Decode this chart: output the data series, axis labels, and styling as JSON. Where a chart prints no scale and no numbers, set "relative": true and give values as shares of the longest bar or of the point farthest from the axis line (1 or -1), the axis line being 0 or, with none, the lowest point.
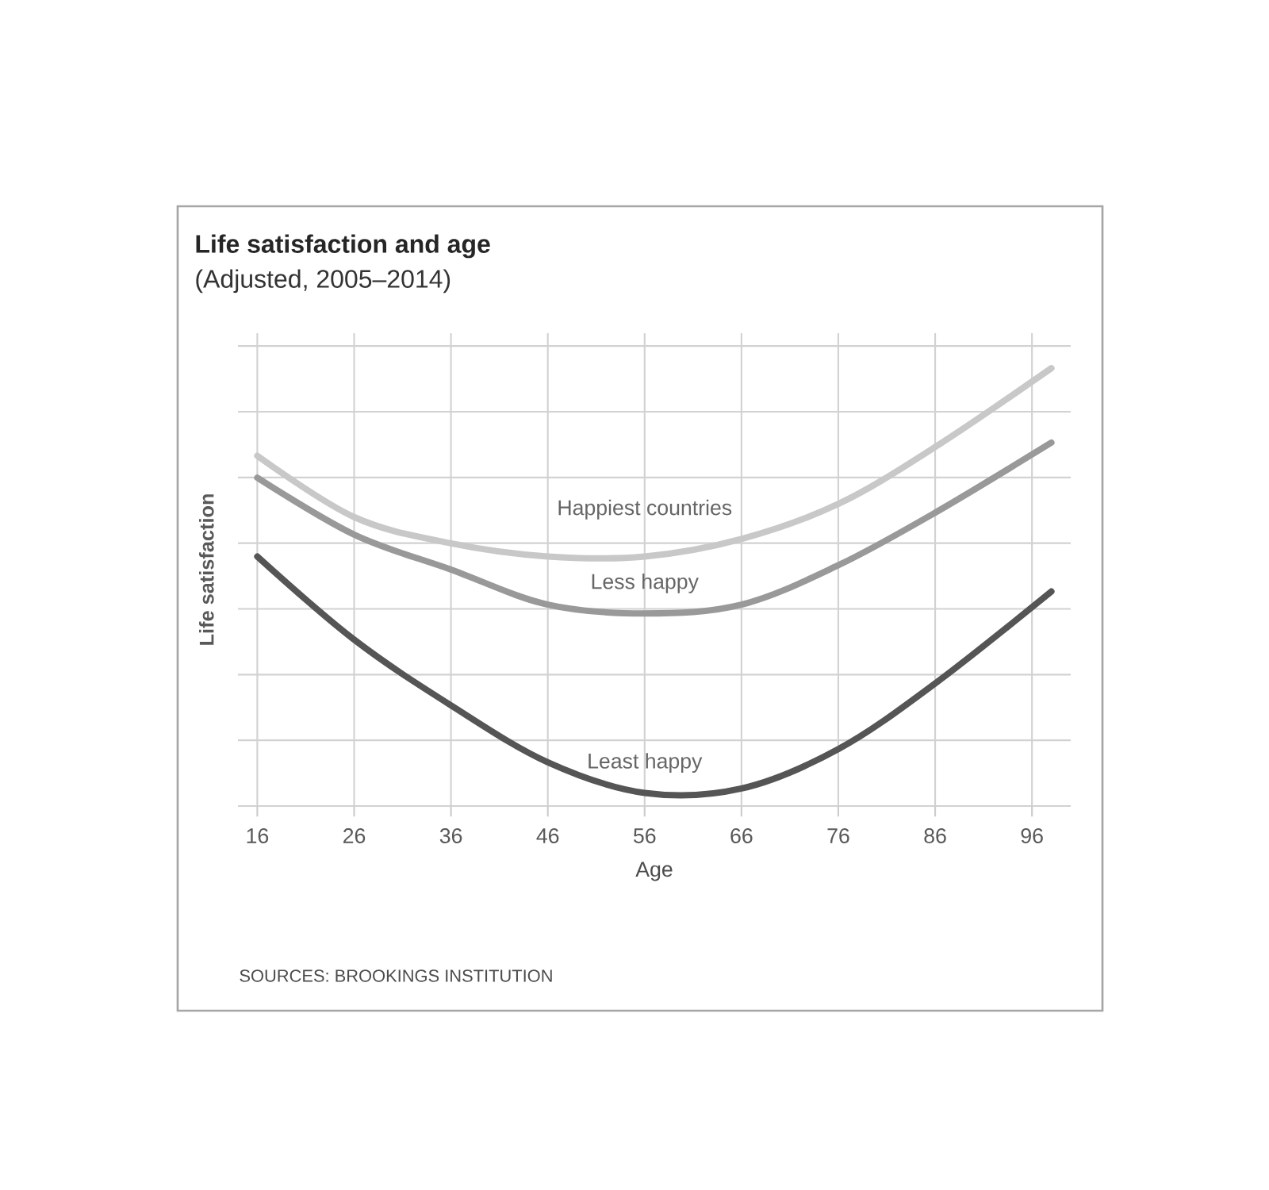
{
  "chart_data": {
    "type": "line",
    "title": "Life satisfaction and age",
    "subtitle": "(Adjusted, 2005–2014)",
    "xlabel": "Age",
    "ylabel": "Life satisfaction",
    "annotations": [
      "SOURCES: BROOKINGS INSTITUTION"
    ],
    "relative": true,
    "grid": true,
    "x": [
      16,
      26,
      36,
      46,
      56,
      66,
      76,
      86,
      98
    ],
    "xlim": [
      14,
      100
    ],
    "xticks": [
      16,
      26,
      36,
      46,
      56,
      66,
      76,
      86,
      96
    ],
    "series": [
      {
        "name": "Happiest countries",
        "color": "#c8c8c8",
        "values": [
          0.8,
          0.66,
          0.6,
          0.57,
          0.57,
          0.61,
          0.69,
          0.82,
          1.0
        ]
      },
      {
        "name": "Less happy",
        "color": "#999999",
        "values": [
          0.75,
          0.62,
          0.54,
          0.46,
          0.44,
          0.46,
          0.55,
          0.67,
          0.83
        ]
      },
      {
        "name": "Least happy",
        "color": "#555555",
        "values": [
          0.57,
          0.38,
          0.23,
          0.1,
          0.03,
          0.04,
          0.13,
          0.28,
          0.49
        ]
      }
    ]
  }
}
